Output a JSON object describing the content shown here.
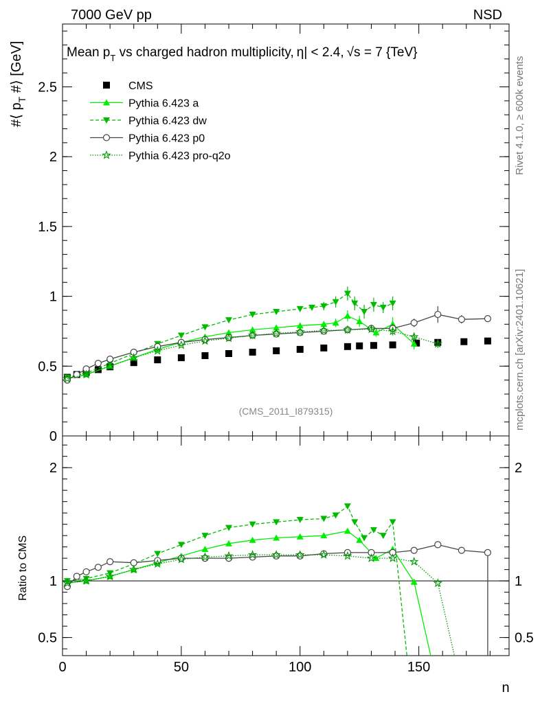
{
  "header": {
    "energy_label": "7000 GeV pp",
    "process_label": "NSD"
  },
  "side_labels": {
    "rivet": "Rivet 4.1.0, ≥ 600k events",
    "mcplots": "mcplots.cern.ch [arXiv:2401.10621]"
  },
  "chart_data": [
    {
      "type": "scatter",
      "title": "Mean p_T vs charged hadron multiplicity, |η| < 2.4, √s = 7 {TeV}",
      "title_parts": {
        "pre": "Mean p",
        "sub": "T",
        "post": " vs charged hadron multiplicity,",
        "eta": "η| < 2.4,",
        "sqrt": "√s = 7 {TeV}"
      },
      "ylabel": "#⟨ p_T #⟩ [GeV]",
      "ylabel_parts": {
        "a": "#⟨ p",
        "sub": "T",
        "b": " #⟩ [GeV]"
      },
      "xlabel": "",
      "analysis_label": "(CMS_2011_I879315)",
      "xlim": [
        0,
        188
      ],
      "ylim": [
        0,
        2.95
      ],
      "yticks": [
        {
          "v": 0,
          "label": "0"
        },
        {
          "v": 0.5,
          "label": "0.5"
        },
        {
          "v": 1,
          "label": "1"
        },
        {
          "v": 1.5,
          "label": "1.5"
        },
        {
          "v": 2,
          "label": "2"
        },
        {
          "v": 2.5,
          "label": "2.5"
        }
      ],
      "legend": [
        {
          "key": "cms",
          "label": "CMS"
        },
        {
          "key": "a",
          "label": "Pythia 6.423 a"
        },
        {
          "key": "dw",
          "label": "Pythia 6.423 dw"
        },
        {
          "key": "p0",
          "label": "Pythia 6.423 p0"
        },
        {
          "key": "pq",
          "label": "Pythia 6.423 pro-q2o"
        }
      ],
      "legend_position": "top-left",
      "series": [
        {
          "key": "cms",
          "name": "CMS",
          "color": "#000000",
          "marker": "square",
          "x": [
            2,
            6,
            10,
            15,
            20,
            30,
            40,
            50,
            60,
            70,
            80,
            90,
            100,
            110,
            120,
            125,
            131,
            139,
            149,
            158,
            169,
            179
          ],
          "y": [
            0.42,
            0.44,
            0.455,
            0.475,
            0.495,
            0.525,
            0.545,
            0.56,
            0.575,
            0.59,
            0.6,
            0.61,
            0.62,
            0.63,
            0.64,
            0.645,
            0.648,
            0.652,
            0.665,
            0.67,
            0.675,
            0.68
          ]
        },
        {
          "key": "a",
          "name": "Pythia 6.423 a",
          "color": "#00ee00",
          "marker": "triangle-up",
          "line": "solid",
          "x": [
            2,
            10,
            20,
            30,
            40,
            50,
            60,
            70,
            80,
            90,
            100,
            110,
            115,
            120,
            125,
            132,
            139,
            148
          ],
          "y": [
            0.41,
            0.44,
            0.5,
            0.56,
            0.62,
            0.67,
            0.71,
            0.74,
            0.76,
            0.775,
            0.79,
            0.8,
            0.81,
            0.86,
            0.82,
            0.74,
            0.8,
            0.66
          ],
          "errors": [
            0,
            0,
            0,
            0,
            0,
            0,
            0,
            0,
            0,
            0,
            0,
            0.02,
            0.03,
            0.04,
            0.04,
            0.03,
            0.05,
            0.04
          ]
        },
        {
          "key": "dw",
          "name": "Pythia 6.423 dw",
          "color": "#00bb00",
          "marker": "triangle-down",
          "line": "dashed",
          "x": [
            2,
            10,
            20,
            30,
            40,
            50,
            60,
            70,
            80,
            90,
            100,
            105,
            110,
            115,
            120,
            123,
            127,
            131,
            135,
            139
          ],
          "y": [
            0.42,
            0.45,
            0.52,
            0.59,
            0.66,
            0.72,
            0.78,
            0.83,
            0.87,
            0.89,
            0.91,
            0.92,
            0.93,
            0.96,
            1.02,
            0.95,
            0.89,
            0.94,
            0.92,
            0.95
          ],
          "errors": [
            0,
            0,
            0,
            0,
            0,
            0,
            0,
            0,
            0,
            0,
            0,
            0.02,
            0.03,
            0.04,
            0.05,
            0.05,
            0.05,
            0.05,
            0.04,
            0.05
          ]
        },
        {
          "key": "p0",
          "name": "Pythia 6.423 p0",
          "color": "#444444",
          "marker": "circle-open",
          "line": "solid",
          "x": [
            2,
            6,
            10,
            15,
            20,
            30,
            40,
            50,
            60,
            70,
            80,
            90,
            100,
            110,
            120,
            130,
            139,
            148,
            158,
            168,
            179
          ],
          "y": [
            0.4,
            0.44,
            0.48,
            0.52,
            0.55,
            0.6,
            0.64,
            0.67,
            0.69,
            0.705,
            0.72,
            0.73,
            0.74,
            0.75,
            0.76,
            0.77,
            0.77,
            0.81,
            0.87,
            0.835,
            0.84
          ],
          "errors": [
            0,
            0,
            0,
            0,
            0,
            0,
            0,
            0,
            0,
            0,
            0,
            0,
            0,
            0,
            0,
            0.02,
            0.03,
            0.03,
            0.06,
            0.03,
            0
          ]
        },
        {
          "key": "pq",
          "name": "Pythia 6.423 pro-q2o",
          "color": "#009900",
          "marker": "star-open",
          "line": "dotted",
          "x": [
            2,
            10,
            20,
            30,
            40,
            50,
            60,
            70,
            80,
            90,
            100,
            110,
            120,
            130,
            139,
            148,
            158
          ],
          "y": [
            0.41,
            0.44,
            0.5,
            0.56,
            0.61,
            0.65,
            0.68,
            0.7,
            0.72,
            0.735,
            0.745,
            0.755,
            0.76,
            0.765,
            0.75,
            0.71,
            0.66
          ],
          "errors": [
            0,
            0,
            0,
            0,
            0,
            0,
            0,
            0,
            0,
            0,
            0,
            0,
            0,
            0.02,
            0.03,
            0.03,
            0.03
          ]
        }
      ]
    },
    {
      "type": "scatter",
      "title": "",
      "ylabel": "Ratio to CMS",
      "xlabel": "n",
      "xlim": [
        0,
        188
      ],
      "ylim": [
        0.34,
        2.28
      ],
      "reference_line": 1,
      "xticks": [
        {
          "v": 0,
          "label": "0"
        },
        {
          "v": 50,
          "label": "50"
        },
        {
          "v": 100,
          "label": "100"
        },
        {
          "v": 150,
          "label": "150"
        }
      ],
      "yticks": [
        {
          "v": 0.5,
          "label": "0.5"
        },
        {
          "v": 1,
          "label": "1"
        },
        {
          "v": 2,
          "label": "2"
        }
      ],
      "series": [
        {
          "key": "a",
          "name": "Pythia 6.423 a",
          "color": "#00ee00",
          "marker": "triangle-up",
          "line": "solid",
          "x": [
            2,
            10,
            20,
            30,
            40,
            50,
            60,
            70,
            80,
            90,
            100,
            110,
            120,
            125,
            132,
            139,
            148,
            155
          ],
          "y": [
            0.98,
            1.0,
            1.04,
            1.1,
            1.16,
            1.22,
            1.28,
            1.33,
            1.36,
            1.38,
            1.39,
            1.4,
            1.44,
            1.36,
            1.2,
            1.28,
            0.99,
            0.3
          ]
        },
        {
          "key": "dw",
          "name": "Pythia 6.423 dw",
          "color": "#00bb00",
          "marker": "triangle-down",
          "line": "dashed",
          "x": [
            2,
            10,
            20,
            30,
            40,
            50,
            60,
            70,
            80,
            90,
            100,
            110,
            115,
            120,
            123,
            127,
            131,
            135,
            139,
            145
          ],
          "y": [
            1.0,
            1.02,
            1.07,
            1.15,
            1.24,
            1.32,
            1.4,
            1.47,
            1.5,
            1.52,
            1.54,
            1.55,
            1.58,
            1.66,
            1.52,
            1.38,
            1.45,
            1.4,
            1.52,
            0.3
          ]
        },
        {
          "key": "p0",
          "name": "Pythia 6.423 p0",
          "color": "#444444",
          "marker": "circle-open",
          "line": "solid",
          "x": [
            2,
            6,
            10,
            15,
            20,
            30,
            40,
            50,
            60,
            70,
            80,
            90,
            100,
            110,
            120,
            130,
            139,
            148,
            158,
            168,
            179,
            179
          ],
          "y": [
            0.95,
            1.04,
            1.08,
            1.12,
            1.17,
            1.16,
            1.18,
            1.2,
            1.2,
            1.2,
            1.21,
            1.22,
            1.22,
            1.24,
            1.25,
            1.25,
            1.25,
            1.27,
            1.32,
            1.27,
            1.25,
            0.3
          ]
        },
        {
          "key": "pq",
          "name": "Pythia 6.423 pro-q2o",
          "color": "#009900",
          "marker": "star-open",
          "line": "dotted",
          "x": [
            2,
            10,
            20,
            30,
            40,
            50,
            60,
            70,
            80,
            90,
            100,
            110,
            120,
            130,
            139,
            148,
            158,
            165
          ],
          "y": [
            0.98,
            1.0,
            1.04,
            1.1,
            1.15,
            1.19,
            1.21,
            1.22,
            1.23,
            1.23,
            1.23,
            1.23,
            1.22,
            1.2,
            1.2,
            1.17,
            0.98,
            0.3
          ]
        }
      ]
    }
  ]
}
